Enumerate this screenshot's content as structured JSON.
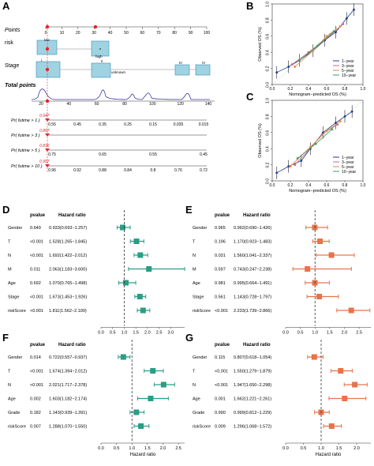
{
  "panels": {
    "A": "A",
    "B": "B",
    "C": "C",
    "D": "D",
    "E": "E",
    "F": "F",
    "G": "G"
  },
  "colors": {
    "forest_teal": "#2a9d85",
    "forest_orange": "#e8734a",
    "nomo_box_fill": "#9fd3e2",
    "nomo_box_stroke": "#3a8db8",
    "nomo_dot": "#e0262a",
    "density": "#3a3aa8",
    "cal_1yr": "#1f3b8f",
    "cal_3yr": "#c06a8c",
    "cal_5yr": "#e88a3c",
    "cal_10yr": "#3a9d6a"
  },
  "nomogram": {
    "points_label": "Points",
    "points_ticks": [
      "0",
      "10",
      "20",
      "30",
      "40",
      "50",
      "60",
      "70",
      "80",
      "90",
      "100"
    ],
    "risk_label": "risk",
    "risk_levels": [
      "low",
      "high"
    ],
    "stage_label": "Stage",
    "stage_levels": [
      "I",
      "unknown",
      "II",
      "III",
      "IV"
    ],
    "total_label": "Total points",
    "total_ticks": [
      "20",
      "40",
      "60",
      "80",
      "100",
      "120",
      "140"
    ],
    "surv_rows": [
      {
        "label": "Pr( futime > 1 )",
        "value": "0.947",
        "ticks": [
          "0.55",
          "0.45",
          "0.35",
          "0.25",
          "0.15",
          "0.035",
          "0.015"
        ]
      },
      {
        "label": "Pr( futime > 3 )",
        "value": "0.867",
        "ticks": []
      },
      {
        "label": "Pr( futime > 5 )",
        "value": "0.836",
        "ticks": [
          "0.75",
          "0.65",
          "0.55",
          "0.45"
        ]
      },
      {
        "label": "Pr( futime > 10 )",
        "value": "0.957",
        "ticks": [
          "0.96",
          "0.92",
          "0.88",
          "0.84",
          "0.8",
          "0.76",
          "0.72"
        ]
      }
    ]
  },
  "chart_data": [
    {
      "panel": "B",
      "type": "line",
      "xlabel": "Nomogram−predicted OS (%)",
      "ylabel": "Observed OS (%)",
      "xlim": [
        0,
        1
      ],
      "ylim": [
        0,
        1
      ],
      "x_ticks": [
        "0.0",
        "0.2",
        "0.4",
        "0.6",
        "0.8",
        "1.0"
      ],
      "y_ticks": [
        "0.0",
        "0.2",
        "0.4",
        "0.6",
        "0.8",
        "1.0"
      ],
      "legend": "bottom-right",
      "series": [
        {
          "name": "1−year",
          "x": [
            0.05,
            0.18,
            0.3,
            0.45,
            0.58,
            0.7,
            0.82,
            0.9
          ],
          "y": [
            0.15,
            0.22,
            0.3,
            0.42,
            0.55,
            0.65,
            0.82,
            0.93
          ]
        },
        {
          "name": "3−year",
          "x": [
            0.22,
            0.4,
            0.52,
            0.65,
            0.78
          ],
          "y": [
            0.25,
            0.4,
            0.5,
            0.62,
            0.75
          ]
        },
        {
          "name": "5−year",
          "x": [
            0.25,
            0.45,
            0.6,
            0.75
          ],
          "y": [
            0.22,
            0.42,
            0.6,
            0.72
          ]
        },
        {
          "name": "10−year",
          "x": [
            0.3,
            0.5,
            0.68
          ],
          "y": [
            0.3,
            0.48,
            0.66
          ]
        }
      ]
    },
    {
      "panel": "C",
      "type": "line",
      "xlabel": "Nomogram−predicted OS (%)",
      "ylabel": "Observed OS (%)",
      "xlim": [
        0,
        1
      ],
      "ylim": [
        0,
        1
      ],
      "x_ticks": [
        "0.0",
        "0.2",
        "0.4",
        "0.6",
        "0.8",
        "1.0"
      ],
      "y_ticks": [
        "0.0",
        "0.2",
        "0.4",
        "0.6",
        "0.8",
        "1.0"
      ],
      "legend": "bottom-right",
      "series": [
        {
          "name": "1−year",
          "x": [
            0.05,
            0.18,
            0.32,
            0.42,
            0.56,
            0.7,
            0.8,
            0.88
          ],
          "y": [
            0.1,
            0.18,
            0.25,
            0.4,
            0.6,
            0.72,
            0.8,
            0.86
          ]
        },
        {
          "name": "3−year",
          "x": [
            0.25,
            0.4,
            0.55,
            0.72
          ],
          "y": [
            0.2,
            0.38,
            0.58,
            0.7
          ]
        },
        {
          "name": "5−year",
          "x": [
            0.2,
            0.42,
            0.6,
            0.75
          ],
          "y": [
            0.18,
            0.42,
            0.62,
            0.74
          ]
        },
        {
          "name": "10−year",
          "x": [
            0.28,
            0.48,
            0.66
          ],
          "y": [
            0.28,
            0.46,
            0.64
          ]
        }
      ]
    },
    {
      "panel": "D",
      "type": "forest",
      "color": "#2a9d85",
      "pvalue_header": "pvalue",
      "hr_header": "Hazard ratio",
      "xlim": [
        0,
        3.6
      ],
      "x_ticks": [
        "0.0",
        "0.5",
        "1.0",
        "1.5",
        "2.0",
        "2.5",
        "3.0"
      ],
      "ref_line": 1,
      "xlabel": "",
      "rows": [
        {
          "name": "Gender",
          "pvalue": "0.649",
          "hr_text": "0.933(0.693−1.257)",
          "hr": 0.933,
          "lo": 0.693,
          "hi": 1.257
        },
        {
          "name": "T",
          "pvalue": "<0.001",
          "hr_text": "1.528(1.265−1.845)",
          "hr": 1.528,
          "lo": 1.265,
          "hi": 1.845
        },
        {
          "name": "N",
          "pvalue": "<0.001",
          "hr_text": "1.692(1.422−2.012)",
          "hr": 1.692,
          "lo": 1.422,
          "hi": 2.012
        },
        {
          "name": "M",
          "pvalue": "0.011",
          "hr_text": "2.063(1.183−3.600)",
          "hr": 2.063,
          "lo": 1.183,
          "hi": 3.6
        },
        {
          "name": "Age",
          "pvalue": "0.692",
          "hr_text": "1.070(0.765−1.498)",
          "hr": 1.07,
          "lo": 0.765,
          "hi": 1.498
        },
        {
          "name": "Stage",
          "pvalue": "<0.001",
          "hr_text": "1.673(1.453−1.926)",
          "hr": 1.673,
          "lo": 1.453,
          "hi": 1.926
        },
        {
          "name": "riskScore",
          "pvalue": "<0.001",
          "hr_text": "1.811(1.562−2.100)",
          "hr": 1.811,
          "lo": 1.562,
          "hi": 2.1
        }
      ]
    },
    {
      "panel": "E",
      "type": "forest",
      "color": "#e8734a",
      "pvalue_header": "pvalue",
      "hr_header": "Hazard ratio",
      "xlim": [
        0,
        2.9
      ],
      "x_ticks": [
        "0.0",
        "0.5",
        "1.0",
        "1.5",
        "2.0",
        "2.5"
      ],
      "ref_line": 1,
      "xlabel": "",
      "rows": [
        {
          "name": "Gender",
          "pvalue": "0.965",
          "hr_text": "0.992(0.690−1.426)",
          "hr": 0.992,
          "lo": 0.69,
          "hi": 1.426
        },
        {
          "name": "T",
          "pvalue": "0.196",
          "hr_text": "1.170(0.923−1.483)",
          "hr": 1.17,
          "lo": 0.923,
          "hi": 1.483
        },
        {
          "name": "N",
          "pvalue": "0.031",
          "hr_text": "1.560(1.041−2.337)",
          "hr": 1.56,
          "lo": 1.041,
          "hi": 2.337
        },
        {
          "name": "M",
          "pvalue": "0.597",
          "hr_text": "0.743(0.247−2.238)",
          "hr": 0.743,
          "lo": 0.247,
          "hi": 2.238
        },
        {
          "name": "Age",
          "pvalue": "0.981",
          "hr_text": "0.995(0.664−1.491)",
          "hr": 0.995,
          "lo": 0.664,
          "hi": 1.491
        },
        {
          "name": "Stage",
          "pvalue": "0.561",
          "hr_text": "1.143(0.728−1.797)",
          "hr": 1.143,
          "lo": 0.728,
          "hi": 1.797
        },
        {
          "name": "riskScore",
          "pvalue": "<0.001",
          "hr_text": "2.233(1.739−2.866)",
          "hr": 2.233,
          "lo": 1.739,
          "hi": 2.866
        }
      ]
    },
    {
      "panel": "F",
      "type": "forest",
      "color": "#2a9d85",
      "pvalue_header": "pvalue",
      "hr_header": "Hazard ratio",
      "xlim": [
        0,
        2.7
      ],
      "x_ticks": [
        "0.0",
        "0.5",
        "1.0",
        "1.5",
        "2.0",
        "2.5"
      ],
      "ref_line": 1,
      "xlabel": "Hazard ratio",
      "rows": [
        {
          "name": "Gender",
          "pvalue": "0.014",
          "hr_text": "0.722(0.557−0.937)",
          "hr": 0.722,
          "lo": 0.557,
          "hi": 0.937
        },
        {
          "name": "T",
          "pvalue": "<0.001",
          "hr_text": "1.674(1.394−2.012)",
          "hr": 1.674,
          "lo": 1.394,
          "hi": 2.012
        },
        {
          "name": "N",
          "pvalue": "<0.001",
          "hr_text": "2.021(1.717−2.378)",
          "hr": 2.021,
          "lo": 1.717,
          "hi": 2.378
        },
        {
          "name": "Age",
          "pvalue": "0.002",
          "hr_text": "1.603(1.182−2.174)",
          "hr": 1.603,
          "lo": 1.182,
          "hi": 2.174
        },
        {
          "name": "Grade",
          "pvalue": "0.182",
          "hr_text": "1.143(0.939−1.391)",
          "hr": 1.143,
          "lo": 0.939,
          "hi": 1.391
        },
        {
          "name": "riskScore",
          "pvalue": "0.007",
          "hr_text": "1.288(1.070−1.550)",
          "hr": 1.288,
          "lo": 1.07,
          "hi": 1.55
        }
      ]
    },
    {
      "panel": "G",
      "type": "forest",
      "color": "#e8734a",
      "pvalue_header": "pvalue",
      "hr_header": "Hazard ratio",
      "xlim": [
        0,
        2.4
      ],
      "x_ticks": [
        "0.0",
        "0.5",
        "1.0",
        "1.5",
        "2.0"
      ],
      "ref_line": 1,
      "xlabel": "Hazard ratio",
      "rows": [
        {
          "name": "Gender",
          "pvalue": "0.115",
          "hr_text": "0.807(0.618−1.054)",
          "hr": 0.807,
          "lo": 0.618,
          "hi": 1.054
        },
        {
          "name": "T",
          "pvalue": "<0.001",
          "hr_text": "1.550(1.279−1.879)",
          "hr": 1.55,
          "lo": 1.279,
          "hi": 1.879
        },
        {
          "name": "N",
          "pvalue": "<0.001",
          "hr_text": "1.947(1.650−2.298)",
          "hr": 1.947,
          "lo": 1.65,
          "hi": 2.298
        },
        {
          "name": "Age",
          "pvalue": "0.001",
          "hr_text": "1.662(1.221−2.261)",
          "hr": 1.662,
          "lo": 1.221,
          "hi": 2.261
        },
        {
          "name": "Grade",
          "pvalue": "0.990",
          "hr_text": "0.999(0.812−1.229)",
          "hr": 0.999,
          "lo": 0.812,
          "hi": 1.229
        },
        {
          "name": "riskScore",
          "pvalue": "0.009",
          "hr_text": "1.296(1.068−1.572)",
          "hr": 1.296,
          "lo": 1.068,
          "hi": 1.572
        }
      ]
    }
  ]
}
